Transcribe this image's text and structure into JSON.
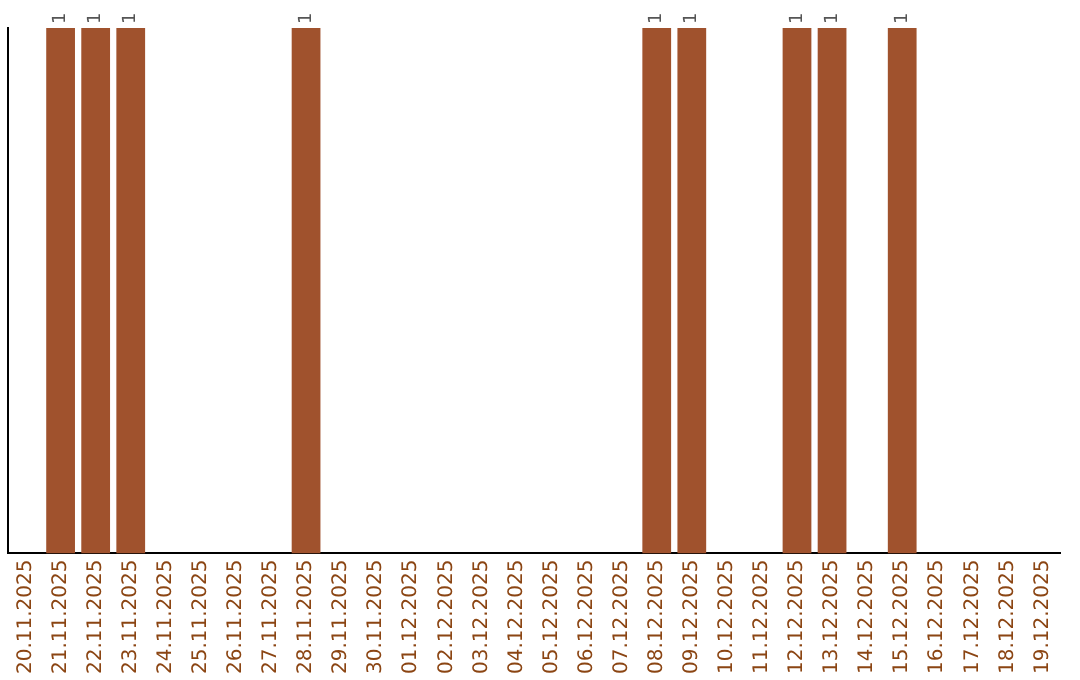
{
  "chart_data": {
    "type": "bar",
    "categories": [
      "20.11.2025",
      "21.11.2025",
      "22.11.2025",
      "23.11.2025",
      "24.11.2025",
      "25.11.2025",
      "26.11.2025",
      "27.11.2025",
      "28.11.2025",
      "29.11.2025",
      "30.11.2025",
      "01.12.2025",
      "02.12.2025",
      "03.12.2025",
      "04.12.2025",
      "05.12.2025",
      "06.12.2025",
      "07.12.2025",
      "08.12.2025",
      "09.12.2025",
      "10.12.2025",
      "11.12.2025",
      "12.12.2025",
      "13.12.2025",
      "14.12.2025",
      "15.12.2025",
      "16.12.2025",
      "17.12.2025",
      "18.12.2025",
      "19.12.2025"
    ],
    "values": [
      0,
      1,
      1,
      1,
      0,
      0,
      0,
      0,
      1,
      0,
      0,
      0,
      0,
      0,
      0,
      0,
      0,
      0,
      1,
      1,
      0,
      0,
      1,
      1,
      0,
      1,
      0,
      0,
      0,
      0
    ],
    "value_labels": [
      null,
      "1",
      "1",
      "1",
      null,
      null,
      null,
      null,
      "1",
      null,
      null,
      null,
      null,
      null,
      null,
      null,
      null,
      null,
      "1",
      "1",
      null,
      null,
      "1",
      "1",
      null,
      "1",
      null,
      null,
      null,
      null
    ],
    "color": "#a0522d",
    "tick_labels": "x",
    "grid": false,
    "legend": false
  }
}
